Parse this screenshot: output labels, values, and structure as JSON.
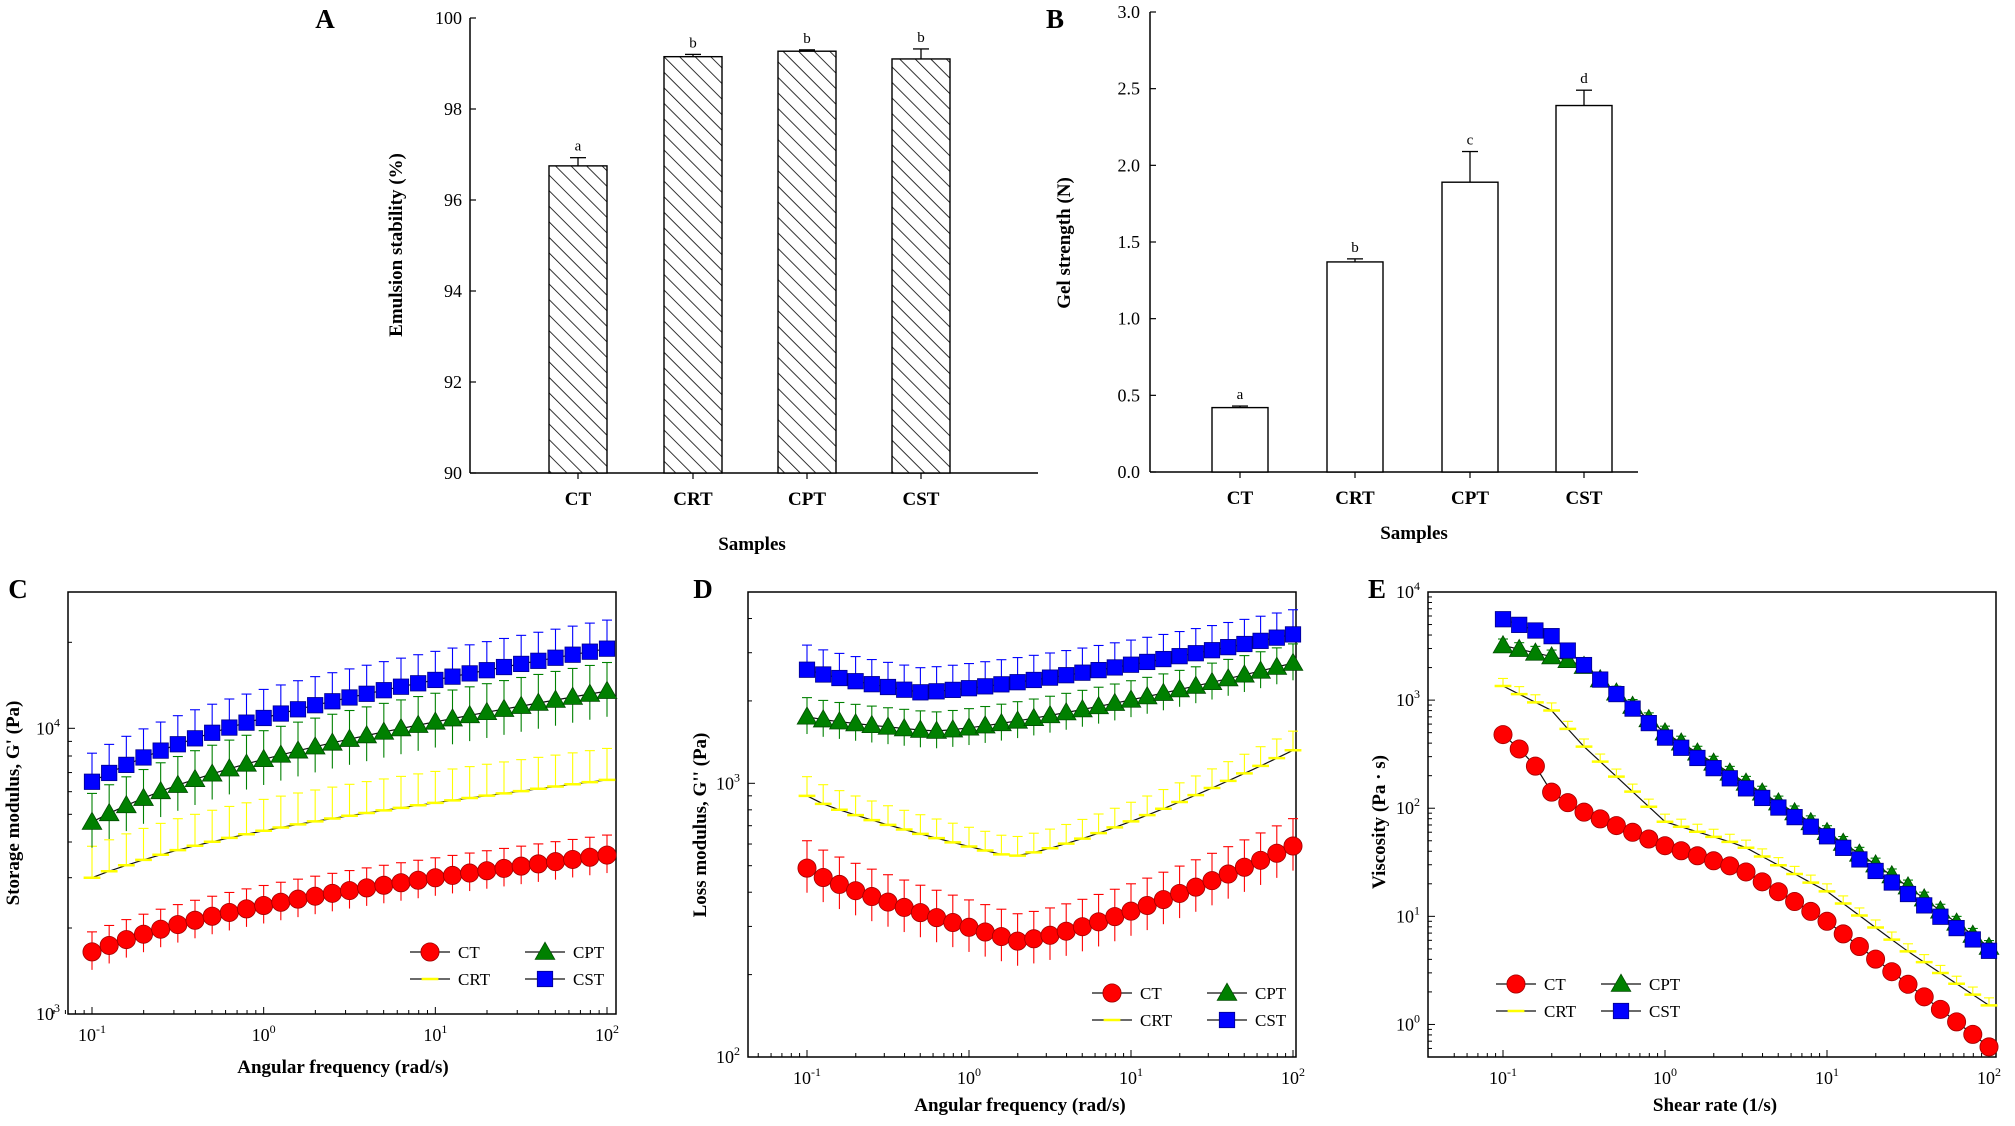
{
  "chart_data": [
    {
      "panel": "A",
      "type": "bar",
      "bar_style": "hatched",
      "categories": [
        "CT",
        "CRT",
        "CPT",
        "CST"
      ],
      "values": [
        96.75,
        99.15,
        99.27,
        99.1
      ],
      "errors": [
        0.18,
        0.05,
        0.03,
        0.22
      ],
      "significance": [
        "a",
        "b",
        "b",
        "b"
      ],
      "ylim": [
        90,
        100
      ],
      "yticks": [
        "90",
        "92",
        "94",
        "96",
        "98",
        "100"
      ],
      "xlabel": "Samples",
      "ylabel": "Emulsion stability (%)"
    },
    {
      "panel": "B",
      "type": "bar",
      "bar_style": "open",
      "categories": [
        "CT",
        "CRT",
        "CPT",
        "CST"
      ],
      "values": [
        0.42,
        1.37,
        1.89,
        2.39
      ],
      "errors": [
        0.01,
        0.02,
        0.2,
        0.1
      ],
      "significance": [
        "a",
        "b",
        "c",
        "d"
      ],
      "ylim": [
        0,
        3
      ],
      "yticks": [
        "0.0",
        "0.5",
        "1.0",
        "1.5",
        "2.0",
        "2.5",
        "3.0"
      ],
      "xlabel": "Samples",
      "ylabel": "Gel strength (N)"
    },
    {
      "panel": "C",
      "type": "line",
      "xscale": "log",
      "yscale": "log",
      "xlim": [
        0.1,
        100
      ],
      "ylim": [
        1000,
        30000
      ],
      "xticks": [
        {
          "base": "10",
          "exp": "-1"
        },
        {
          "base": "10",
          "exp": "0"
        },
        {
          "base": "10",
          "exp": "1"
        },
        {
          "base": "10",
          "exp": "2"
        }
      ],
      "yticks": [
        {
          "base": "10",
          "exp": "3"
        },
        {
          "base": "10",
          "exp": "4"
        }
      ],
      "xlabel": "Angular frequency (rad/s)",
      "ylabel": "Storage modulus, G' (Pa)",
      "legend": [
        "CT",
        "CRT",
        "CPT",
        "CST"
      ],
      "series": [
        {
          "name": "CT",
          "color": "#ff0000",
          "marker": "circle",
          "start": 1650,
          "end": 3600,
          "shape": "saturating",
          "err": 0.07
        },
        {
          "name": "CRT",
          "color": "#ffff00",
          "marker": "dash",
          "start": 3000,
          "end": 6600,
          "shape": "saturating",
          "err": 0.11
        },
        {
          "name": "CPT",
          "color": "#008000",
          "marker": "triangle",
          "start": 4700,
          "end": 13500,
          "shape": "saturating",
          "err": 0.1
        },
        {
          "name": "CST",
          "color": "#0000ff",
          "marker": "square",
          "start": 6500,
          "end": 19000,
          "shape": "saturating",
          "err": 0.1
        }
      ]
    },
    {
      "panel": "D",
      "type": "line",
      "xscale": "log",
      "yscale": "log",
      "xlim": [
        0.1,
        100
      ],
      "ylim": [
        100,
        5000
      ],
      "xticks": [
        {
          "base": "10",
          "exp": "-1"
        },
        {
          "base": "10",
          "exp": "0"
        },
        {
          "base": "10",
          "exp": "1"
        },
        {
          "base": "10",
          "exp": "2"
        }
      ],
      "yticks": [
        {
          "base": "10",
          "exp": "2"
        },
        {
          "base": "10",
          "exp": "3"
        }
      ],
      "xlabel": "Angular frequency (rad/s)",
      "ylabel": "Loss modulus, G'' (Pa)",
      "legend": [
        "CT",
        "CRT",
        "CPT",
        "CST"
      ],
      "series": [
        {
          "name": "CT",
          "color": "#ff0000",
          "marker": "circle",
          "start": 490,
          "end": 590,
          "min": 265,
          "min_x": 2.0,
          "shape": "valley",
          "err": 0.1
        },
        {
          "name": "CRT",
          "color": "#ffff00",
          "marker": "dash",
          "start": 900,
          "end": 1320,
          "min": 540,
          "min_x": 1.8,
          "shape": "valley",
          "err": 0.07
        },
        {
          "name": "CPT",
          "color": "#008000",
          "marker": "triangle",
          "start": 1750,
          "end": 2750,
          "min": 1550,
          "min_x": 0.6,
          "shape": "valley",
          "err": 0.07
        },
        {
          "name": "CST",
          "color": "#0000ff",
          "marker": "square",
          "start": 2600,
          "end": 3500,
          "min": 2150,
          "min_x": 0.5,
          "shape": "valley",
          "err": 0.09
        }
      ]
    },
    {
      "panel": "E",
      "type": "line",
      "xscale": "log",
      "yscale": "log",
      "xlim": [
        0.1,
        100
      ],
      "ylim": [
        0.5,
        10000
      ],
      "xticks": [
        {
          "base": "10",
          "exp": "-1"
        },
        {
          "base": "10",
          "exp": "0"
        },
        {
          "base": "10",
          "exp": "1"
        },
        {
          "base": "10",
          "exp": "2"
        }
      ],
      "yticks": [
        {
          "base": "10",
          "exp": "0"
        },
        {
          "base": "10",
          "exp": "1"
        },
        {
          "base": "10",
          "exp": "2"
        },
        {
          "base": "10",
          "exp": "3"
        },
        {
          "base": "10",
          "exp": "4"
        }
      ],
      "xlabel": "Shear rate (1/s)",
      "ylabel": "Viscosity (Pa · s)",
      "legend": [
        "CT",
        "CRT",
        "CPT",
        "CST"
      ],
      "series": [
        {
          "name": "CT",
          "color": "#ff0000",
          "marker": "circle",
          "anchors": [
            [
              0.1,
              480
            ],
            [
              0.15,
              280
            ],
            [
              0.2,
              140
            ],
            [
              0.3,
              95
            ],
            [
              1,
              45
            ],
            [
              3,
              27
            ],
            [
              10,
              9
            ],
            [
              30,
              2.5
            ],
            [
              100,
              0.62
            ]
          ],
          "err": 0.06
        },
        {
          "name": "CRT",
          "color": "#ffff00",
          "marker": "dash",
          "anchors": [
            [
              0.1,
              1350
            ],
            [
              0.2,
              800
            ],
            [
              0.3,
              400
            ],
            [
              1,
              75
            ],
            [
              3,
              45
            ],
            [
              10,
              17
            ],
            [
              30,
              5
            ],
            [
              100,
              1.5
            ]
          ],
          "err": 0.07
        },
        {
          "name": "CPT",
          "color": "#008000",
          "marker": "triangle",
          "anchors": [
            [
              0.1,
              3200
            ],
            [
              0.3,
              2200
            ],
            [
              1,
              500
            ],
            [
              3,
              180
            ],
            [
              10,
              60
            ],
            [
              30,
              20
            ],
            [
              100,
              5.2
            ]
          ],
          "err": 0.06
        },
        {
          "name": "CST",
          "color": "#0000ff",
          "marker": "square",
          "anchors": [
            [
              0.1,
              5600
            ],
            [
              0.2,
              3900
            ],
            [
              1,
              450
            ],
            [
              3,
              160
            ],
            [
              10,
              55
            ],
            [
              30,
              17
            ],
            [
              100,
              4.8
            ]
          ],
          "err": 0.05
        }
      ]
    }
  ]
}
